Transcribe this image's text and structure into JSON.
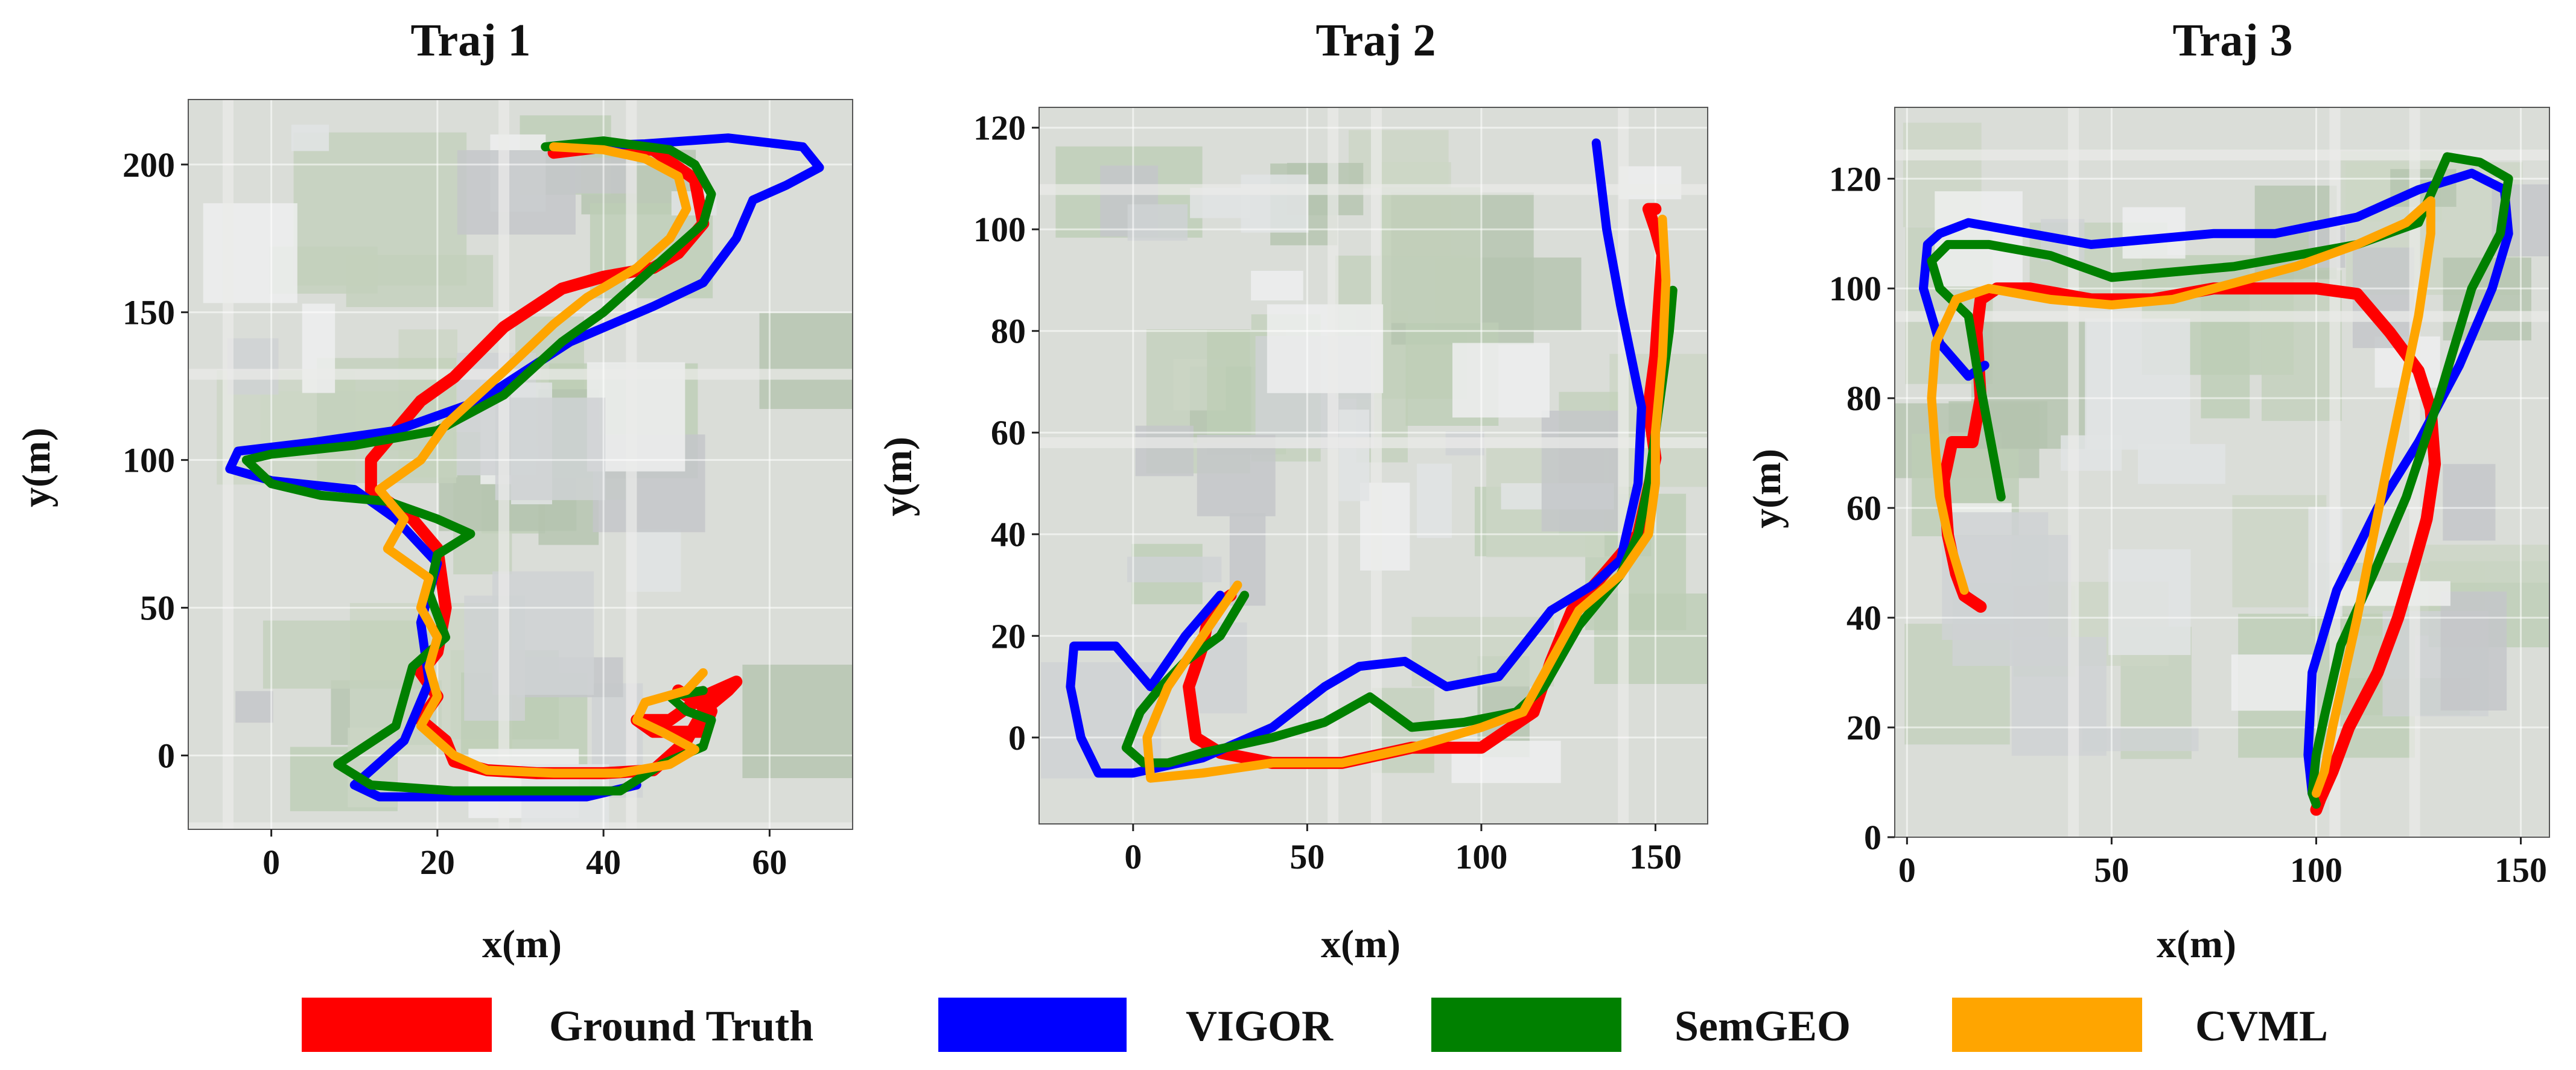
{
  "colors": {
    "Ground Truth": "#ff0000",
    "VIGOR": "#0000ff",
    "SemGEO": "#008000",
    "CVML": "#ffa500"
  },
  "legend": {
    "items": [
      {
        "label": "Ground Truth",
        "color": "#ff0000"
      },
      {
        "label": "VIGOR",
        "color": "#0000ff"
      },
      {
        "label": "SemGEO",
        "color": "#008000"
      },
      {
        "label": "CVML",
        "color": "#ffa500"
      }
    ]
  },
  "chart_data": [
    {
      "type": "line",
      "title": "Traj 1",
      "xlabel": "x(m)",
      "ylabel": "y(m)",
      "xlim": [
        -10,
        70
      ],
      "ylim": [
        -25,
        222
      ],
      "xticks": [
        0,
        20,
        40,
        60
      ],
      "yticks": [
        0,
        50,
        100,
        150,
        200
      ],
      "grid": true,
      "background": "aerial map",
      "series": [
        {
          "name": "Ground Truth",
          "x": [
            34,
            40,
            46,
            51,
            52,
            49,
            46,
            40,
            35,
            28,
            22,
            18,
            12,
            12,
            17,
            20,
            21,
            20,
            18,
            20,
            18,
            21,
            22,
            26,
            32,
            40,
            46,
            50,
            52,
            55,
            56,
            52,
            48,
            44,
            46,
            52,
            53,
            49
          ],
          "y": [
            204,
            206,
            205,
            195,
            180,
            170,
            165,
            162,
            158,
            145,
            128,
            120,
            100,
            90,
            80,
            70,
            50,
            35,
            28,
            20,
            12,
            5,
            -2,
            -5,
            -6,
            -6,
            -5,
            5,
            15,
            22,
            25,
            20,
            12,
            12,
            8,
            8,
            15,
            22
          ]
        },
        {
          "name": "VIGOR",
          "x": [
            35,
            45,
            55,
            64,
            66,
            62,
            58,
            56,
            52,
            46,
            36,
            25,
            15,
            5,
            -4,
            -5,
            0,
            10,
            15,
            20,
            18,
            19,
            16,
            10,
            13,
            22,
            30,
            38,
            44
          ],
          "y": [
            206,
            207,
            209,
            206,
            199,
            193,
            188,
            175,
            160,
            152,
            140,
            120,
            110,
            106,
            103,
            97,
            93,
            90,
            80,
            65,
            45,
            25,
            5,
            -10,
            -14,
            -14,
            -14,
            -14,
            -10
          ]
        },
        {
          "name": "SemGEO",
          "x": [
            33,
            40,
            48,
            51,
            53,
            52,
            48,
            44,
            40,
            35,
            28,
            20,
            10,
            0,
            -3,
            0,
            6,
            14,
            20,
            24,
            20,
            19,
            21,
            17,
            15,
            8,
            12,
            22,
            32,
            42,
            47,
            52,
            53,
            50,
            48,
            52
          ],
          "y": [
            206,
            208,
            205,
            200,
            190,
            180,
            170,
            160,
            150,
            140,
            122,
            110,
            105,
            102,
            100,
            92,
            88,
            86,
            80,
            75,
            68,
            55,
            40,
            30,
            10,
            -3,
            -10,
            -12,
            -12,
            -12,
            -3,
            3,
            12,
            15,
            20,
            22
          ]
        },
        {
          "name": "CVML",
          "x": [
            34,
            40,
            45,
            49,
            50,
            48,
            44,
            38,
            34,
            28,
            21,
            18,
            13,
            16,
            14,
            19,
            18,
            20,
            19,
            20,
            18,
            22,
            26,
            34,
            42,
            48,
            51,
            47,
            44,
            45,
            50,
            52
          ],
          "y": [
            206,
            205,
            202,
            196,
            185,
            175,
            165,
            155,
            146,
            130,
            112,
            100,
            90,
            80,
            70,
            60,
            50,
            40,
            30,
            20,
            10,
            0,
            -5,
            -6,
            -6,
            -3,
            2,
            8,
            12,
            18,
            22,
            28
          ]
        }
      ]
    },
    {
      "type": "line",
      "title": "Traj 2",
      "xlabel": "x(m)",
      "ylabel": "y(m)",
      "xlim": [
        -27,
        165
      ],
      "ylim": [
        -17,
        124
      ],
      "xticks": [
        0,
        50,
        100,
        150
      ],
      "yticks": [
        0,
        20,
        40,
        60,
        80,
        100,
        120
      ],
      "grid": true,
      "background": "aerial map",
      "series": [
        {
          "name": "Ground Truth",
          "x": [
            28,
            22,
            20,
            16,
            18,
            25,
            40,
            60,
            80,
            100,
            115,
            120,
            126,
            135,
            145,
            150,
            148,
            150,
            151,
            152,
            150,
            148,
            150
          ],
          "y": [
            28,
            25,
            18,
            10,
            0,
            -3,
            -5,
            -5,
            -2,
            -2,
            5,
            15,
            25,
            32,
            40,
            55,
            65,
            75,
            85,
            95,
            100,
            104,
            104
          ]
        },
        {
          "name": "VIGOR",
          "x": [
            25,
            15,
            5,
            -5,
            -17,
            -18,
            -15,
            -10,
            0,
            20,
            40,
            55,
            65,
            78,
            90,
            105,
            112,
            120,
            132,
            140,
            145,
            146,
            140,
            136,
            133
          ],
          "y": [
            28,
            20,
            10,
            18,
            18,
            10,
            0,
            -7,
            -7,
            -4,
            2,
            10,
            14,
            15,
            10,
            12,
            18,
            25,
            30,
            35,
            50,
            65,
            85,
            100,
            117
          ]
        },
        {
          "name": "SemGEO",
          "x": [
            32,
            25,
            15,
            8,
            2,
            -2,
            3,
            10,
            20,
            40,
            55,
            68,
            80,
            95,
            110,
            118,
            128,
            140,
            145,
            148,
            150,
            152,
            154,
            155
          ],
          "y": [
            28,
            20,
            15,
            10,
            5,
            -2,
            -5,
            -5,
            -3,
            0,
            3,
            8,
            2,
            3,
            5,
            10,
            22,
            32,
            40,
            50,
            60,
            70,
            80,
            88
          ]
        },
        {
          "name": "CVML",
          "x": [
            30,
            20,
            10,
            4,
            5,
            20,
            40,
            60,
            80,
            100,
            112,
            120,
            128,
            140,
            148,
            150,
            150,
            152,
            153,
            152
          ],
          "y": [
            30,
            20,
            10,
            0,
            -8,
            -7,
            -5,
            -5,
            -2,
            2,
            5,
            15,
            25,
            32,
            40,
            50,
            60,
            75,
            90,
            102
          ]
        }
      ]
    },
    {
      "type": "line",
      "title": "Traj 3",
      "xlabel": "x(m)",
      "ylabel": "y(m)",
      "xlim": [
        -3,
        157
      ],
      "ylim": [
        0,
        133
      ],
      "xticks": [
        0,
        50,
        100,
        150
      ],
      "yticks": [
        0,
        20,
        40,
        60,
        80,
        100,
        120
      ],
      "grid": true,
      "background": "aerial map",
      "series": [
        {
          "name": "Ground Truth",
          "x": [
            18,
            14,
            12,
            10,
            9,
            11,
            16,
            18,
            17,
            18,
            22,
            30,
            45,
            60,
            75,
            90,
            100,
            110,
            118,
            125,
            128,
            129,
            127,
            124,
            120,
            115,
            108,
            104,
            101,
            100
          ],
          "y": [
            42,
            44,
            48,
            55,
            65,
            72,
            72,
            80,
            92,
            98,
            100,
            100,
            98,
            98,
            100,
            100,
            100,
            99,
            92,
            85,
            78,
            68,
            58,
            50,
            40,
            30,
            20,
            12,
            7,
            5
          ]
        },
        {
          "name": "VIGOR",
          "x": [
            19,
            15,
            8,
            4,
            5,
            8,
            15,
            30,
            45,
            60,
            75,
            90,
            110,
            125,
            138,
            146,
            147,
            143,
            135,
            125,
            115,
            105,
            99,
            98,
            99
          ],
          "y": [
            86,
            84,
            90,
            100,
            108,
            110,
            112,
            110,
            108,
            109,
            110,
            110,
            113,
            118,
            121,
            118,
            110,
            100,
            86,
            72,
            60,
            45,
            30,
            15,
            8
          ]
        },
        {
          "name": "SemGEO",
          "x": [
            23,
            21,
            19,
            17,
            15,
            8,
            6,
            10,
            20,
            35,
            50,
            65,
            80,
            95,
            110,
            125,
            132,
            140,
            147,
            145,
            138,
            130,
            122,
            114,
            106,
            102,
            100,
            99,
            100
          ],
          "y": [
            62,
            70,
            78,
            86,
            95,
            100,
            105,
            108,
            108,
            106,
            102,
            103,
            104,
            106,
            108,
            112,
            124,
            123,
            120,
            110,
            100,
            80,
            62,
            48,
            35,
            22,
            15,
            8,
            6
          ]
        },
        {
          "name": "CVML",
          "x": [
            14,
            12,
            10,
            8,
            7,
            6,
            7,
            12,
            20,
            35,
            50,
            65,
            80,
            95,
            110,
            122,
            128,
            128,
            125,
            118,
            110,
            104,
            102,
            100
          ],
          "y": [
            45,
            50,
            55,
            62,
            70,
            80,
            90,
            98,
            100,
            98,
            97,
            98,
            101,
            104,
            108,
            112,
            116,
            110,
            95,
            70,
            40,
            20,
            12,
            8
          ]
        }
      ]
    }
  ]
}
